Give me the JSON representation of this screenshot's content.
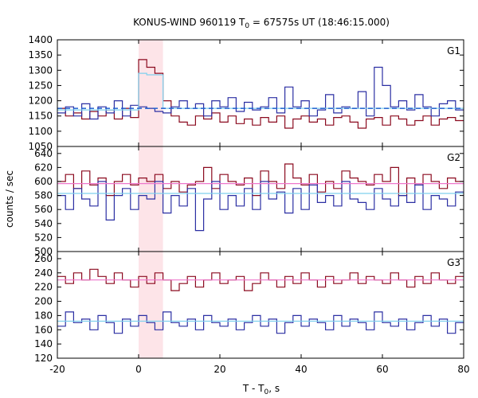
{
  "chart_data": {
    "type": "line",
    "title": "KONUS-WIND 960119 T",
    "title_sub": "0",
    "title_rest": " = 67575s UT (18:46:15.000)",
    "xlabel": "T - T",
    "xlabel_sub": "0",
    "xlabel_rest": ", s",
    "ylabel": "counts / sec",
    "xlim": [
      -20,
      80
    ],
    "x_ticks": [
      -20,
      0,
      20,
      40,
      60,
      80
    ],
    "highlight_interval": [
      0,
      6
    ],
    "bin_edges": [
      -20,
      -18,
      -16,
      -14,
      -12,
      -10,
      -8,
      -6,
      -4,
      -2,
      0,
      2,
      4,
      6,
      8,
      10,
      12,
      14,
      16,
      18,
      20,
      22,
      24,
      26,
      28,
      30,
      32,
      34,
      36,
      38,
      40,
      42,
      44,
      46,
      48,
      50,
      52,
      54,
      56,
      58,
      60,
      62,
      64,
      66,
      68,
      70,
      72,
      74,
      76,
      78,
      80
    ],
    "colors": {
      "dark_red": "#8b0a1f",
      "dark_blue": "#2b2fa3",
      "light_blue": "#7fd0ee",
      "pink": "#ee77cc",
      "dashed_blue": "#2060d0",
      "highlight": "#fde4e8"
    },
    "panels": [
      {
        "label": "G1",
        "ylim": [
          1050,
          1400
        ],
        "y_ticks": [
          1050,
          1100,
          1150,
          1200,
          1250,
          1300,
          1350,
          1400
        ],
        "series": [
          {
            "color_key": "dark_red",
            "values": [
              1175,
              1150,
              1160,
              1140,
              1165,
              1150,
              1170,
              1140,
              1175,
              1145,
              1335,
              1310,
              1290,
              1200,
              1150,
              1130,
              1120,
              1150,
              1140,
              1160,
              1130,
              1150,
              1125,
              1140,
              1120,
              1145,
              1130,
              1150,
              1110,
              1140,
              1150,
              1130,
              1140,
              1120,
              1145,
              1150,
              1130,
              1110,
              1140,
              1145,
              1120,
              1150,
              1140,
              1120,
              1135,
              1150,
              1120,
              1140,
              1145,
              1135
            ]
          },
          {
            "color_key": "dark_blue",
            "values": [
              1160,
              1180,
              1150,
              1190,
              1140,
              1180,
              1160,
              1200,
              1150,
              1185,
              1180,
              1175,
              1165,
              1160,
              1180,
              1200,
              1175,
              1190,
              1150,
              1200,
              1180,
              1210,
              1165,
              1195,
              1170,
              1180,
              1210,
              1160,
              1245,
              1180,
              1200,
              1150,
              1170,
              1220,
              1160,
              1180,
              1175,
              1230,
              1150,
              1310,
              1250,
              1180,
              1200,
              1170,
              1220,
              1180,
              1150,
              1190,
              1200,
              1170
            ]
          },
          {
            "color_key": "light_blue",
            "values": [
              1170,
              1170,
              1170,
              1170,
              1170,
              1170,
              1170,
              1170,
              1170,
              1170,
              1290,
              1285,
              1285,
              1175,
              1175,
              1175,
              1175,
              1175,
              1175,
              1175,
              1175,
              1175,
              1175,
              1175,
              1175,
              1175,
              1175,
              1175,
              1175,
              1175,
              1175,
              1175,
              1175,
              1175,
              1175,
              1175,
              1175,
              1175,
              1175,
              1175,
              1175,
              1175,
              1175,
              1175,
              1175,
              1175,
              1175,
              1175,
              1175,
              1175
            ]
          },
          {
            "color_key": "dashed_blue",
            "dashed": true,
            "values": [
              1175,
              1175,
              1175,
              1175,
              1175,
              1175,
              1175,
              1175,
              1175,
              1175,
              1175,
              1175,
              1175,
              1175,
              1175,
              1175,
              1175,
              1175,
              1175,
              1175,
              1175,
              1175,
              1175,
              1175,
              1175,
              1175,
              1175,
              1175,
              1175,
              1175,
              1175,
              1175,
              1175,
              1175,
              1175,
              1175,
              1175,
              1175,
              1175,
              1175,
              1175,
              1175,
              1175,
              1175,
              1175,
              1175,
              1175,
              1175,
              1175,
              1175
            ]
          }
        ]
      },
      {
        "label": "G2",
        "ylim": [
          500,
          650
        ],
        "y_ticks": [
          500,
          520,
          540,
          560,
          580,
          600,
          620,
          640
        ],
        "series": [
          {
            "color_key": "dark_red",
            "values": [
              600,
              610,
              590,
              615,
              595,
              605,
              580,
              600,
              610,
              595,
              605,
              600,
              610,
              590,
              600,
              585,
              595,
              600,
              620,
              590,
              610,
              600,
              595,
              605,
              580,
              615,
              600,
              590,
              625,
              605,
              595,
              610,
              585,
              600,
              590,
              615,
              605,
              600,
              595,
              610,
              600,
              620,
              580,
              605,
              595,
              610,
              600,
              590,
              605,
              600
            ]
          },
          {
            "color_key": "dark_blue",
            "values": [
              580,
              560,
              590,
              575,
              565,
              600,
              545,
              580,
              590,
              560,
              580,
              575,
              600,
              555,
              580,
              565,
              590,
              530,
              575,
              600,
              560,
              580,
              565,
              590,
              560,
              600,
              575,
              585,
              555,
              590,
              560,
              595,
              570,
              580,
              565,
              600,
              575,
              570,
              560,
              590,
              575,
              565,
              580,
              570,
              595,
              560,
              580,
              575,
              565,
              585
            ]
          },
          {
            "color_key": "light_blue",
            "values": [
              583,
              583,
              583,
              583,
              583,
              583,
              583,
              583,
              583,
              583,
              583,
              583,
              583,
              583,
              583,
              583,
              583,
              583,
              583,
              583,
              583,
              583,
              583,
              583,
              583,
              583,
              583,
              583,
              583,
              583,
              583,
              583,
              583,
              583,
              583,
              583,
              583,
              583,
              583,
              583,
              583,
              583,
              583,
              583,
              583,
              583,
              583,
              583,
              583,
              583
            ]
          },
          {
            "color_key": "pink",
            "values": [
              597,
              597,
              597,
              597,
              597,
              597,
              597,
              597,
              597,
              597,
              597,
              597,
              597,
              597,
              597,
              597,
              597,
              597,
              597,
              597,
              597,
              597,
              597,
              597,
              597,
              597,
              597,
              597,
              597,
              597,
              597,
              597,
              597,
              597,
              597,
              597,
              597,
              597,
              597,
              597,
              597,
              597,
              597,
              597,
              597,
              597,
              597,
              597,
              597,
              597
            ]
          }
        ]
      },
      {
        "label": "G3",
        "ylim": [
          120,
          270
        ],
        "y_ticks": [
          120,
          140,
          160,
          180,
          200,
          220,
          240,
          260
        ],
        "series": [
          {
            "color_key": "dark_red",
            "values": [
              235,
              225,
              240,
              230,
              245,
              235,
              225,
              240,
              230,
              220,
              235,
              225,
              240,
              230,
              215,
              225,
              235,
              220,
              230,
              240,
              225,
              230,
              235,
              215,
              225,
              240,
              230,
              220,
              235,
              225,
              240,
              230,
              220,
              235,
              225,
              230,
              240,
              225,
              235,
              230,
              225,
              240,
              230,
              220,
              235,
              225,
              240,
              230,
              225,
              235
            ]
          },
          {
            "color_key": "dark_blue",
            "values": [
              165,
              185,
              170,
              175,
              160,
              180,
              170,
              155,
              175,
              165,
              180,
              170,
              160,
              185,
              170,
              165,
              175,
              160,
              180,
              170,
              165,
              175,
              160,
              170,
              180,
              165,
              175,
              155,
              170,
              180,
              165,
              175,
              170,
              160,
              180,
              165,
              175,
              170,
              160,
              185,
              170,
              165,
              175,
              160,
              170,
              180,
              165,
              175,
              155,
              170
            ]
          },
          {
            "color_key": "light_blue",
            "values": [
              172,
              172,
              172,
              172,
              172,
              172,
              172,
              172,
              172,
              172,
              172,
              172,
              172,
              172,
              172,
              172,
              172,
              172,
              172,
              172,
              172,
              172,
              172,
              172,
              172,
              172,
              172,
              172,
              172,
              172,
              172,
              172,
              172,
              172,
              172,
              172,
              172,
              172,
              172,
              172,
              172,
              172,
              172,
              172,
              172,
              172,
              172,
              172,
              172,
              172
            ]
          },
          {
            "color_key": "pink",
            "values": [
              230,
              230,
              230,
              230,
              230,
              230,
              230,
              230,
              230,
              230,
              230,
              230,
              230,
              230,
              230,
              230,
              230,
              230,
              230,
              230,
              230,
              230,
              230,
              230,
              230,
              230,
              230,
              230,
              230,
              230,
              230,
              230,
              230,
              230,
              230,
              230,
              230,
              230,
              230,
              230,
              230,
              230,
              230,
              230,
              230,
              230,
              230,
              230,
              230,
              230
            ]
          }
        ]
      }
    ]
  }
}
